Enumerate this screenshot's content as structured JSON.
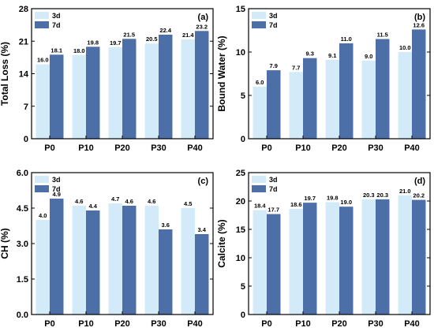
{
  "colors": {
    "series_3d": "#d3ebf8",
    "series_7d": "#4d6fa8",
    "axis": "#000000"
  },
  "chart_data": [
    {
      "type": "bar",
      "panel_label": "(a)",
      "categories": [
        "P0",
        "P10",
        "P20",
        "P30",
        "P40"
      ],
      "ylabel": "Total Loss (%)",
      "xlabel": "",
      "ylim": [
        0,
        28
      ],
      "yticks": [
        0,
        7,
        14,
        21,
        28
      ],
      "ytick_labels": [
        "0",
        "7",
        "14",
        "21",
        "28"
      ],
      "legend_position": "top-left",
      "series": [
        {
          "name": "3d",
          "values": [
            16.0,
            18.0,
            19.7,
            20.5,
            21.4
          ],
          "labels": [
            "16.0",
            "18.0",
            "19.7",
            "20.5",
            "21.4"
          ]
        },
        {
          "name": "7d",
          "values": [
            18.1,
            19.8,
            21.5,
            22.4,
            23.2
          ],
          "labels": [
            "18.1",
            "19.8",
            "21.5",
            "22.4",
            "23.2"
          ]
        }
      ]
    },
    {
      "type": "bar",
      "panel_label": "(b)",
      "categories": [
        "P0",
        "P10",
        "P20",
        "P30",
        "P40"
      ],
      "ylabel": "Bound Water (%)",
      "xlabel": "",
      "ylim": [
        0,
        15
      ],
      "yticks": [
        0,
        5,
        10,
        15
      ],
      "ytick_labels": [
        "0",
        "5",
        "10",
        "15"
      ],
      "legend_position": "top-left",
      "series": [
        {
          "name": "3d",
          "values": [
            6.0,
            7.7,
            9.1,
            9.0,
            10.0
          ],
          "labels": [
            "6.0",
            "7.7",
            "9.1",
            "9.0",
            "10.0"
          ]
        },
        {
          "name": "7d",
          "values": [
            7.9,
            9.3,
            11.0,
            11.5,
            12.6
          ],
          "labels": [
            "7.9",
            "9.3",
            "11.0",
            "11.5",
            "12.6"
          ]
        }
      ]
    },
    {
      "type": "bar",
      "panel_label": "(c)",
      "categories": [
        "P0",
        "P10",
        "P20",
        "P30",
        "P40"
      ],
      "ylabel": "CH (%)",
      "xlabel": "",
      "ylim": [
        0,
        6
      ],
      "yticks": [
        0,
        1.5,
        3,
        4.5,
        6
      ],
      "ytick_labels": [
        "0.0",
        "1.5",
        "3.0",
        "4.5",
        "6.0"
      ],
      "legend_position": "top-left",
      "series": [
        {
          "name": "3d",
          "values": [
            4.0,
            4.6,
            4.7,
            4.6,
            4.5
          ],
          "labels": [
            "4.0",
            "4.6",
            "4.7",
            "4.6",
            "4.5"
          ]
        },
        {
          "name": "7d",
          "values": [
            4.9,
            4.4,
            4.6,
            3.6,
            3.4
          ],
          "labels": [
            "4.9",
            "4.4",
            "4.6",
            "3.6",
            "3.4"
          ]
        }
      ]
    },
    {
      "type": "bar",
      "panel_label": "(d)",
      "categories": [
        "P0",
        "P10",
        "P20",
        "P30",
        "P40"
      ],
      "ylabel": "Calcite (%)",
      "xlabel": "",
      "ylim": [
        0,
        25
      ],
      "yticks": [
        0,
        5,
        10,
        15,
        20,
        25
      ],
      "ytick_labels": [
        "0",
        "5",
        "10",
        "15",
        "20",
        "25"
      ],
      "legend_position": "top-left",
      "series": [
        {
          "name": "3d",
          "values": [
            18.4,
            18.6,
            19.8,
            20.3,
            21.0
          ],
          "labels": [
            "18.4",
            "18.6",
            "19.8",
            "20.3",
            "21.0"
          ]
        },
        {
          "name": "7d",
          "values": [
            17.7,
            19.7,
            19.0,
            20.3,
            20.2
          ],
          "labels": [
            "17.7",
            "19.7",
            "19.0",
            "20.3",
            "20.2"
          ]
        }
      ]
    }
  ]
}
